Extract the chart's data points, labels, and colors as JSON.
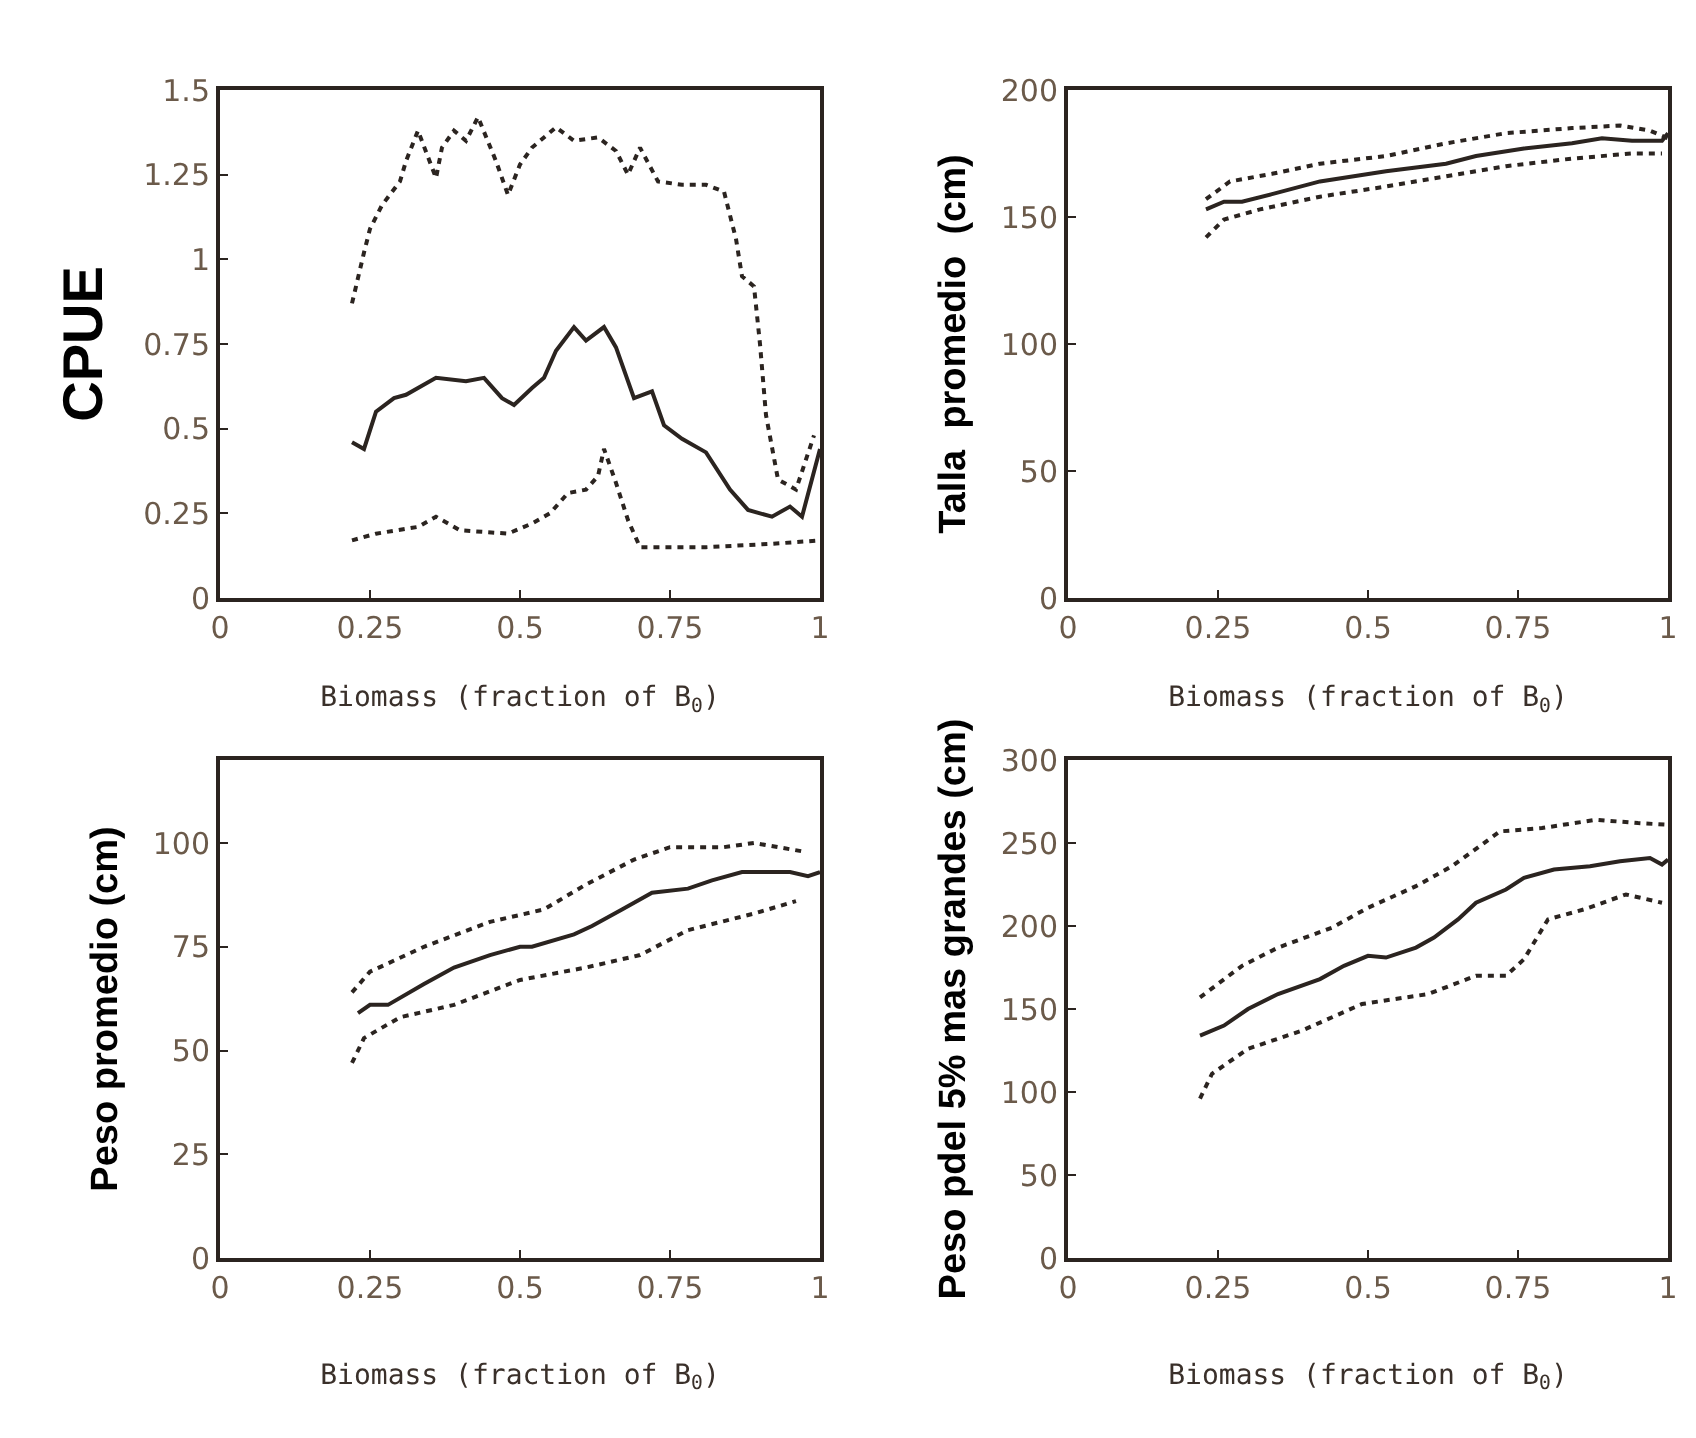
{
  "chart_data": [
    {
      "type": "line",
      "ylabel": "CPUE",
      "xlabel": "Biomass (fraction of B$_{0}$)",
      "xlim": [
        0,
        1
      ],
      "xticks": [
        0,
        0.25,
        0.5,
        0.75,
        1
      ],
      "ylim": [
        0,
        1.5
      ],
      "yticks": [
        0,
        0.25,
        0.5,
        0.75,
        1,
        1.25,
        1.5
      ],
      "grid": false,
      "marker": "none",
      "series": [
        {
          "color": "#2b2420",
          "line_style": "solid",
          "x": [
            0.22,
            0.24,
            0.26,
            0.29,
            0.31,
            0.36,
            0.41,
            0.44,
            0.47,
            0.49,
            0.52,
            0.54,
            0.56,
            0.59,
            0.61,
            0.64,
            0.66,
            0.69,
            0.72,
            0.74,
            0.77,
            0.81,
            0.85,
            0.88,
            0.92,
            0.95,
            0.97,
            1.0
          ],
          "values": [
            0.46,
            0.44,
            0.55,
            0.59,
            0.6,
            0.65,
            0.64,
            0.65,
            0.59,
            0.57,
            0.62,
            0.65,
            0.73,
            0.8,
            0.76,
            0.8,
            0.74,
            0.59,
            0.61,
            0.51,
            0.47,
            0.43,
            0.32,
            0.26,
            0.24,
            0.27,
            0.24,
            0.44
          ]
        },
        {
          "color": "#2b2420",
          "line_style": "dotted",
          "x": [
            0.22,
            0.24,
            0.25,
            0.27,
            0.3,
            0.31,
            0.33,
            0.36,
            0.37,
            0.39,
            0.41,
            0.43,
            0.46,
            0.48,
            0.5,
            0.52,
            0.56,
            0.59,
            0.63,
            0.66,
            0.68,
            0.7,
            0.73,
            0.77,
            0.81,
            0.84,
            0.86,
            0.87,
            0.89,
            0.9,
            0.91,
            0.93,
            0.96,
            0.99
          ],
          "values": [
            0.87,
            1.02,
            1.09,
            1.16,
            1.23,
            1.29,
            1.38,
            1.24,
            1.33,
            1.38,
            1.35,
            1.42,
            1.29,
            1.19,
            1.28,
            1.33,
            1.39,
            1.35,
            1.36,
            1.32,
            1.25,
            1.33,
            1.23,
            1.22,
            1.22,
            1.2,
            1.06,
            0.95,
            0.92,
            0.75,
            0.54,
            0.35,
            0.32,
            0.48
          ]
        },
        {
          "color": "#2b2420",
          "line_style": "dotted",
          "x": [
            0.22,
            0.26,
            0.33,
            0.36,
            0.4,
            0.48,
            0.52,
            0.55,
            0.58,
            0.61,
            0.63,
            0.64,
            0.66,
            0.68,
            0.7,
            0.81,
            0.92,
            1.0
          ],
          "values": [
            0.17,
            0.19,
            0.21,
            0.24,
            0.2,
            0.19,
            0.22,
            0.25,
            0.31,
            0.32,
            0.36,
            0.44,
            0.34,
            0.23,
            0.15,
            0.15,
            0.16,
            0.17
          ]
        }
      ]
    },
    {
      "type": "line",
      "ylabel": "Talla  promedio  (cm)",
      "xlabel": "Biomass (fraction of B$_{0}$)",
      "xlim": [
        0,
        1
      ],
      "xticks": [
        0,
        0.25,
        0.5,
        0.75,
        1
      ],
      "ylim": [
        0,
        200
      ],
      "yticks": [
        0,
        50,
        100,
        150,
        200
      ],
      "grid": false,
      "marker": "none",
      "series": [
        {
          "color": "#2b2420",
          "line_style": "solid",
          "x": [
            0.23,
            0.26,
            0.29,
            0.34,
            0.42,
            0.53,
            0.63,
            0.68,
            0.76,
            0.84,
            0.89,
            0.94,
            0.99,
            1.0
          ],
          "values": [
            153,
            156,
            156,
            159,
            164,
            168,
            171,
            174,
            177,
            179,
            181,
            180,
            180,
            183
          ]
        },
        {
          "color": "#2b2420",
          "line_style": "dotted",
          "x": [
            0.23,
            0.27,
            0.34,
            0.42,
            0.53,
            0.63,
            0.73,
            0.84,
            0.92,
            0.97,
            1.0
          ],
          "values": [
            157,
            164,
            167,
            171,
            174,
            179,
            183,
            185,
            186,
            184,
            181
          ]
        },
        {
          "color": "#2b2420",
          "line_style": "dotted",
          "x": [
            0.23,
            0.26,
            0.32,
            0.42,
            0.53,
            0.63,
            0.73,
            0.84,
            0.94,
            0.99
          ],
          "values": [
            142,
            149,
            153,
            158,
            162,
            166,
            170,
            173,
            175,
            175
          ]
        }
      ]
    },
    {
      "type": "line",
      "ylabel": "Peso promedio (cm)",
      "xlabel": "Biomass (fraction of B$_{0}$)",
      "xlim": [
        0,
        1
      ],
      "xticks": [
        0,
        0.25,
        0.5,
        0.75,
        1
      ],
      "ylim": [
        0,
        120
      ],
      "yticks": [
        0,
        25,
        50,
        75,
        100
      ],
      "grid": false,
      "marker": "none",
      "series": [
        {
          "color": "#2b2420",
          "line_style": "solid",
          "x": [
            0.23,
            0.25,
            0.28,
            0.34,
            0.39,
            0.45,
            0.5,
            0.52,
            0.59,
            0.62,
            0.67,
            0.72,
            0.78,
            0.82,
            0.87,
            0.91,
            0.95,
            0.98,
            1.0
          ],
          "values": [
            59,
            61,
            61,
            66,
            70,
            73,
            75,
            75,
            78,
            80,
            84,
            88,
            89,
            91,
            93,
            93,
            93,
            92,
            93
          ]
        },
        {
          "color": "#2b2420",
          "line_style": "dotted",
          "x": [
            0.22,
            0.25,
            0.34,
            0.45,
            0.54,
            0.61,
            0.69,
            0.75,
            0.84,
            0.89,
            0.97
          ],
          "values": [
            64,
            69,
            75,
            81,
            84,
            90,
            96,
            99,
            99,
            100,
            98
          ]
        },
        {
          "color": "#2b2420",
          "line_style": "dotted",
          "x": [
            0.22,
            0.24,
            0.3,
            0.39,
            0.5,
            0.61,
            0.7,
            0.78,
            0.89,
            0.96
          ],
          "values": [
            47,
            53,
            58,
            61,
            67,
            70,
            73,
            79,
            83,
            86
          ]
        }
      ]
    },
    {
      "type": "line",
      "ylabel": "Peso pdel 5% mas grandes (cm)",
      "xlabel": "Biomass (fraction of B$_{0}$)",
      "xlim": [
        0,
        1
      ],
      "xticks": [
        0,
        0.25,
        0.5,
        0.75,
        1
      ],
      "ylim": [
        0,
        300
      ],
      "yticks": [
        0,
        50,
        100,
        150,
        200,
        250,
        300
      ],
      "grid": false,
      "marker": "none",
      "series": [
        {
          "color": "#2b2420",
          "line_style": "solid",
          "x": [
            0.22,
            0.26,
            0.3,
            0.35,
            0.42,
            0.46,
            0.5,
            0.53,
            0.58,
            0.61,
            0.65,
            0.68,
            0.73,
            0.76,
            0.81,
            0.87,
            0.92,
            0.97,
            0.99,
            1.0
          ],
          "values": [
            134,
            140,
            150,
            159,
            168,
            176,
            182,
            181,
            187,
            193,
            204,
            214,
            222,
            229,
            234,
            236,
            239,
            241,
            237,
            240
          ]
        },
        {
          "color": "#2b2420",
          "line_style": "dotted",
          "x": [
            0.22,
            0.29,
            0.35,
            0.44,
            0.5,
            0.58,
            0.64,
            0.72,
            0.79,
            0.88,
            0.95,
            1.0
          ],
          "values": [
            157,
            176,
            187,
            199,
            211,
            224,
            236,
            257,
            259,
            264,
            262,
            261
          ]
        },
        {
          "color": "#2b2420",
          "line_style": "dotted",
          "x": [
            0.22,
            0.24,
            0.3,
            0.39,
            0.49,
            0.6,
            0.68,
            0.73,
            0.76,
            0.8,
            0.86,
            0.93,
            0.99
          ],
          "values": [
            96,
            111,
            126,
            137,
            153,
            159,
            170,
            170,
            180,
            204,
            210,
            219,
            214
          ]
        }
      ]
    }
  ]
}
